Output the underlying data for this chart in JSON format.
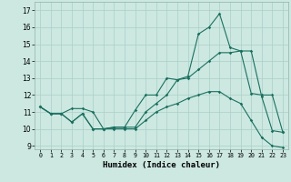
{
  "xlabel": "Humidex (Indice chaleur)",
  "bg_color": "#cce8e0",
  "grid_color": "#aacfc8",
  "line_color": "#1a7060",
  "xlim": [
    -0.5,
    23.5
  ],
  "ylim": [
    8.8,
    17.5
  ],
  "xticks": [
    0,
    1,
    2,
    3,
    4,
    5,
    6,
    7,
    8,
    9,
    10,
    11,
    12,
    13,
    14,
    15,
    16,
    17,
    18,
    19,
    20,
    21,
    22,
    23
  ],
  "yticks": [
    9,
    10,
    11,
    12,
    13,
    14,
    15,
    16,
    17
  ],
  "series1_x": [
    0,
    1,
    2,
    3,
    4,
    5,
    6,
    7,
    8,
    9,
    10,
    11,
    12,
    13,
    14,
    15,
    16,
    17,
    18,
    19,
    20,
    21,
    22,
    23
  ],
  "series1_y": [
    11.3,
    10.9,
    10.9,
    11.2,
    11.2,
    11.0,
    10.0,
    10.1,
    10.1,
    11.1,
    12.0,
    12.0,
    13.0,
    12.9,
    13.1,
    15.6,
    16.0,
    16.8,
    14.8,
    14.6,
    14.6,
    11.9,
    9.9,
    9.8
  ],
  "series2_x": [
    0,
    1,
    2,
    3,
    4,
    5,
    6,
    7,
    8,
    9,
    10,
    11,
    12,
    13,
    14,
    15,
    16,
    17,
    18,
    19,
    20,
    21,
    22,
    23
  ],
  "series2_y": [
    11.3,
    10.9,
    10.9,
    10.4,
    10.9,
    10.0,
    10.0,
    10.1,
    10.1,
    10.1,
    11.0,
    11.5,
    12.0,
    12.9,
    13.0,
    13.5,
    14.0,
    14.5,
    14.5,
    14.6,
    12.1,
    12.0,
    12.0,
    9.8
  ],
  "series3_x": [
    0,
    1,
    2,
    3,
    4,
    5,
    6,
    7,
    8,
    9,
    10,
    11,
    12,
    13,
    14,
    15,
    16,
    17,
    18,
    19,
    20,
    21,
    22,
    23
  ],
  "series3_y": [
    11.3,
    10.9,
    10.9,
    10.4,
    10.9,
    10.0,
    10.0,
    10.0,
    10.0,
    10.0,
    10.5,
    11.0,
    11.3,
    11.5,
    11.8,
    12.0,
    12.2,
    12.2,
    11.8,
    11.5,
    10.5,
    9.5,
    9.0,
    8.9
  ]
}
